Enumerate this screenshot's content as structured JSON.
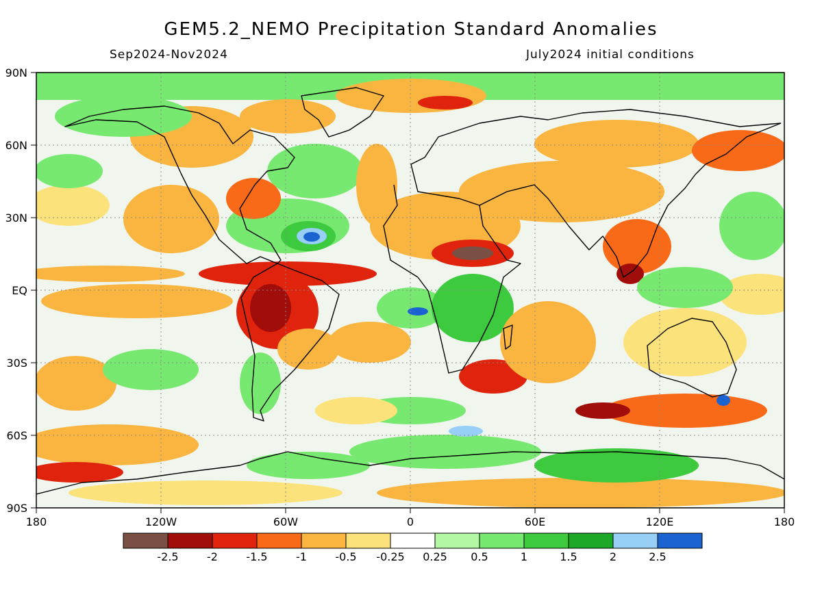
{
  "title": "GEM5.2_NEMO Precipitation Standard Anomalies",
  "period": "Sep2024-Nov2024",
  "init": "July2024 initial conditions",
  "lat_ticks": [
    "90N",
    "60N",
    "30N",
    "EQ",
    "30S",
    "60S",
    "90S"
  ],
  "lon_ticks": [
    "180",
    "120W",
    "60W",
    "0",
    "60E",
    "120E",
    "180"
  ],
  "colorbar": {
    "colors": [
      "#7a5044",
      "#a00d0a",
      "#e0230c",
      "#f96a18",
      "#f9b540",
      "#fbe27a",
      "#ffffff",
      "#b4f7a4",
      "#78e970",
      "#3dca3e",
      "#1ca826",
      "#98cff6",
      "#1a63d0"
    ],
    "labels": [
      "-2.5",
      "-2",
      "-1.5",
      "-1",
      "-0.5",
      "-0.25",
      "0.25",
      "0.5",
      "1",
      "1.5",
      "2",
      "2.5"
    ]
  },
  "map_colors": {
    "ocean_base": "#f0f6ee",
    "wet": "#78e970",
    "wet_light": "#b4f7a4",
    "wet_strong": "#3dca3e",
    "very_wet": "#98cff6",
    "extreme_wet": "#1a63d0",
    "dry_light": "#fbe27a",
    "dry": "#f9b540",
    "dry_mod": "#f96a18",
    "dry_strong": "#e0230c",
    "very_dry": "#a00d0a",
    "extreme_dry": "#7a5044"
  }
}
